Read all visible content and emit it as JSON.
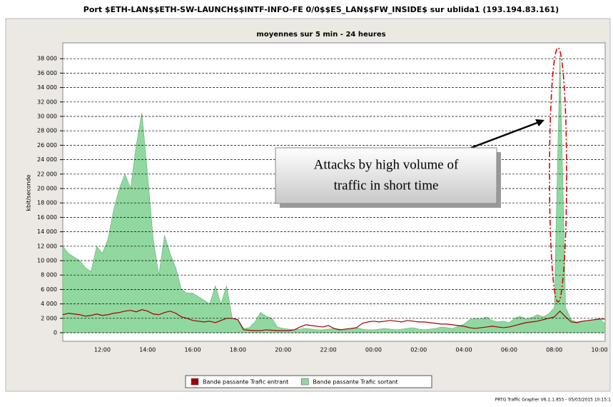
{
  "chart_data": {
    "type": "area",
    "title": "Port $ETH-LAN$$ETH-SW-LAUNCH$$INTF-INFO-FE 0/0$$ES_LAN$$FW_INSIDE$ sur ublida1 (193.194.83.161)",
    "subtitle": "moyennes sur 5 min - 24 heures",
    "y_label": "kbit/seconde",
    "annotation": [
      "Attacks by high volume of",
      "traffic in short time"
    ],
    "footer": "PRTG Traffic Grapher V6.1.1.855 - 05/03/2015 10:15:1",
    "categories": [
      null,
      null,
      null,
      null,
      null,
      null,
      null,
      "12:00",
      null,
      null,
      null,
      null,
      null,
      null,
      null,
      "14:00",
      null,
      null,
      null,
      null,
      null,
      null,
      null,
      "16:00",
      null,
      null,
      null,
      null,
      null,
      null,
      null,
      "18:00",
      null,
      null,
      null,
      null,
      null,
      null,
      null,
      "20:00",
      null,
      null,
      null,
      null,
      null,
      null,
      null,
      "22:00",
      null,
      null,
      null,
      null,
      null,
      null,
      null,
      "00:00",
      null,
      null,
      null,
      null,
      null,
      null,
      null,
      "02:00",
      null,
      null,
      null,
      null,
      null,
      null,
      null,
      "04:00",
      null,
      null,
      null,
      null,
      null,
      null,
      null,
      "06:00",
      null,
      null,
      null,
      null,
      null,
      null,
      null,
      "08:00",
      null,
      null,
      null,
      null,
      null,
      null,
      null,
      "10:00",
      null
    ],
    "series": [
      {
        "name": "Bande passante Trafic entrant",
        "color": "#a00000",
        "style": "line",
        "values": [
          2500,
          2700,
          2600,
          2500,
          2300,
          2400,
          2600,
          2400,
          2500,
          2700,
          2800,
          3000,
          3100,
          2900,
          3200,
          3000,
          2600,
          2500,
          2800,
          3000,
          2700,
          2200,
          2000,
          1700,
          1600,
          1500,
          1600,
          1400,
          1700,
          2000,
          2000,
          1800,
          400,
          350,
          300,
          300,
          400,
          350,
          300,
          300,
          300,
          400,
          800,
          1100,
          1000,
          900,
          800,
          1000,
          600,
          400,
          500,
          600,
          700,
          1300,
          1500,
          1600,
          1500,
          1600,
          1700,
          1600,
          1500,
          1700,
          1600,
          1500,
          1500,
          1400,
          1300,
          1200,
          1200,
          1100,
          1000,
          900,
          700,
          600,
          700,
          800,
          900,
          800,
          700,
          800,
          1000,
          1200,
          1400,
          1500,
          1600,
          1800,
          2000,
          2200,
          3000,
          2200,
          1500,
          1400,
          1600,
          1700,
          1800,
          1900,
          1900
        ]
      },
      {
        "name": "Bande passante Trafic sortant",
        "color": "#90d8a0",
        "style": "area",
        "values": [
          12000,
          11000,
          10500,
          10000,
          9000,
          8500,
          12000,
          11000,
          13000,
          17000,
          20000,
          22000,
          20000,
          26000,
          30500,
          22000,
          13000,
          8000,
          13500,
          11000,
          9000,
          6000,
          5500,
          5500,
          5000,
          4500,
          4000,
          6500,
          4000,
          6500,
          2000,
          1800,
          600,
          700,
          1500,
          2800,
          2300,
          2000,
          800,
          600,
          500,
          400,
          500,
          600,
          500,
          400,
          400,
          500,
          600,
          500,
          400,
          500,
          700,
          500,
          400,
          400,
          500,
          600,
          500,
          400,
          500,
          600,
          700,
          500,
          400,
          500,
          600,
          800,
          700,
          600,
          900,
          1200,
          1800,
          2000,
          1900,
          2200,
          1700,
          1500,
          1600,
          1400,
          2000,
          2300,
          1900,
          2100,
          2500,
          2200,
          2600,
          3500,
          38500,
          3500,
          1800,
          1500,
          1600,
          1700,
          1800,
          2000,
          1200
        ]
      }
    ],
    "ylim": [
      0,
      40000
    ],
    "yticks": [
      0,
      {
        "value": 2000,
        "label": "2 000"
      },
      {
        "value": 4000,
        "label": "4 000"
      },
      {
        "value": 6000,
        "label": "6 000"
      },
      {
        "value": 8000,
        "label": "8 000"
      },
      {
        "value": 10000,
        "label": "10 000"
      },
      {
        "value": 12000,
        "label": "12 000"
      },
      {
        "value": 14000,
        "label": "14 000"
      },
      {
        "value": 16000,
        "label": "16 000"
      },
      {
        "value": 18000,
        "label": "18 000"
      },
      {
        "value": 20000,
        "label": "20 000"
      },
      {
        "value": 22000,
        "label": "22 000"
      },
      {
        "value": 24000,
        "label": "24 000"
      },
      {
        "value": 26000,
        "label": "26 000"
      },
      {
        "value": 28000,
        "label": "28 000"
      },
      {
        "value": 30000,
        "label": "30 000"
      },
      {
        "value": 32000,
        "label": "32 000"
      },
      {
        "value": 34000,
        "label": "34 000"
      },
      {
        "value": 36000,
        "label": "36 000"
      },
      {
        "value": 38000,
        "label": "38 000"
      }
    ],
    "grid": true
  }
}
